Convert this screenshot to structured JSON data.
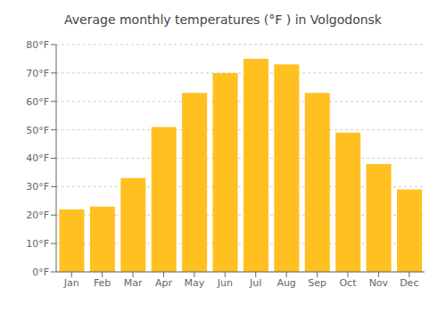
{
  "chart_data": {
    "type": "bar",
    "title": "Average monthly temperatures (°F ) in Volgodonsk",
    "categories": [
      "Jan",
      "Feb",
      "Mar",
      "Apr",
      "May",
      "Jun",
      "Jul",
      "Aug",
      "Sep",
      "Oct",
      "Nov",
      "Dec"
    ],
    "values": [
      22,
      23,
      33,
      51,
      63,
      70,
      75,
      73,
      63,
      49,
      38,
      29
    ],
    "color": "#FFC020",
    "ylim": [
      0,
      80
    ],
    "yticks": [
      {
        "value": 0,
        "label": "0°F"
      },
      {
        "value": 10,
        "label": "10°F"
      },
      {
        "value": 20,
        "label": "20°F"
      },
      {
        "value": 30,
        "label": "30°F"
      },
      {
        "value": 40,
        "label": "40°F"
      },
      {
        "value": 50,
        "label": "50°F"
      },
      {
        "value": 60,
        "label": "60°F"
      },
      {
        "value": 70,
        "label": "70°F"
      },
      {
        "value": 80,
        "label": "80°F"
      }
    ],
    "grid": true
  }
}
